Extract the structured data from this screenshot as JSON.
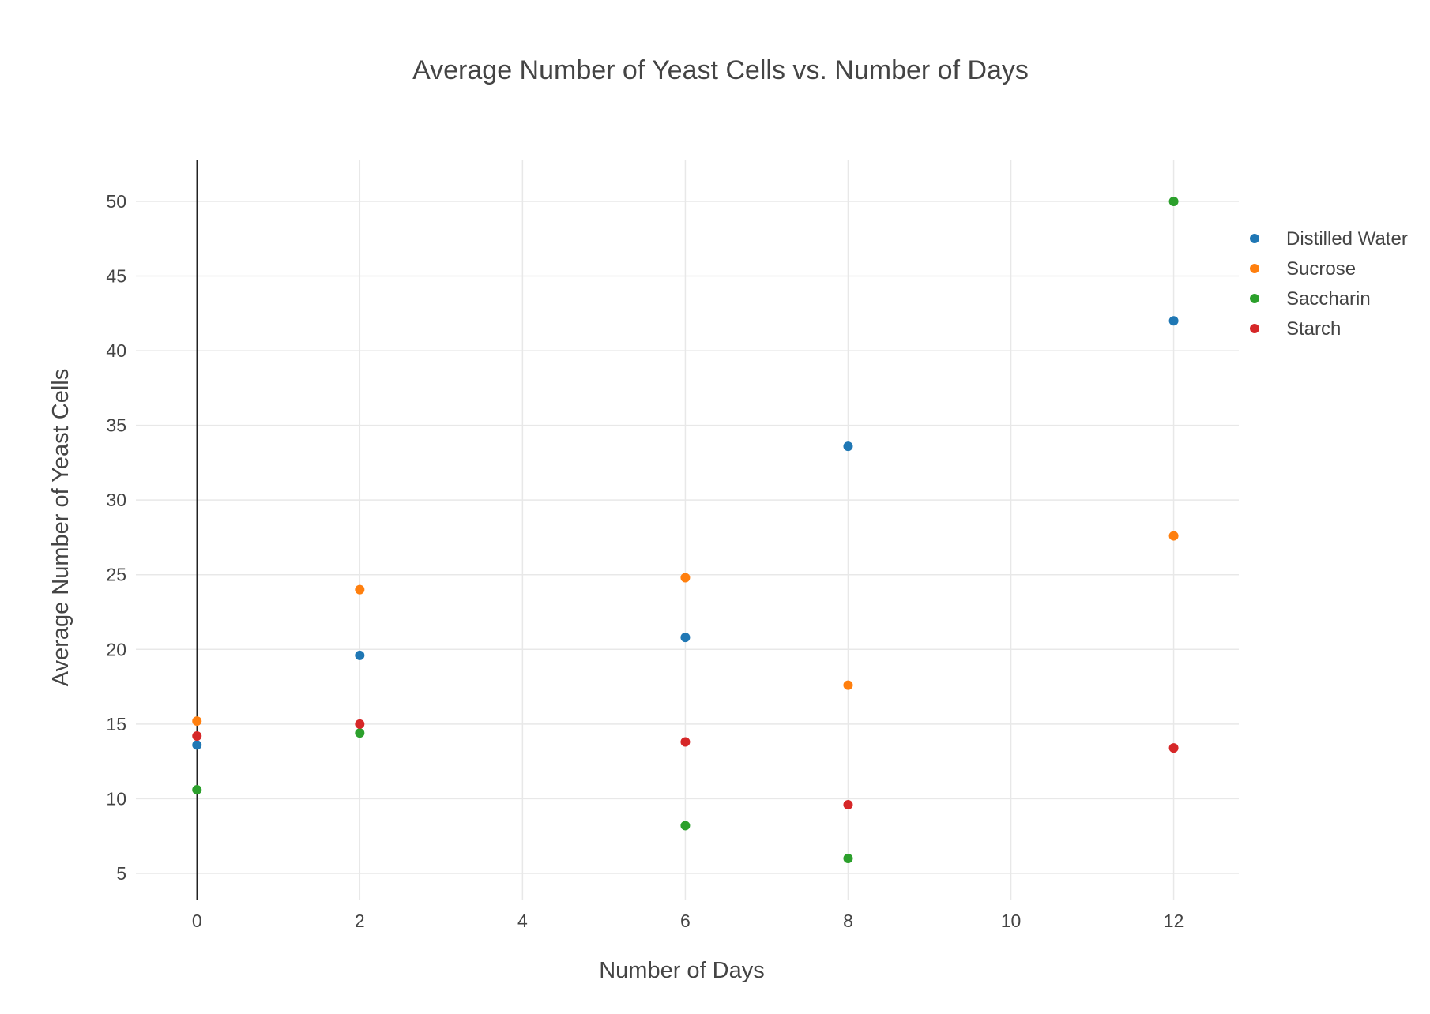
{
  "chart_data": {
    "type": "scatter",
    "title": "Average Number of Yeast Cells vs. Number of Days",
    "xlabel": "Number of Days",
    "ylabel": "Average Number of Yeast Cells",
    "xlim": [
      -0.75,
      12.8
    ],
    "ylim": [
      3.2,
      52.8
    ],
    "xticks": [
      0,
      2,
      4,
      6,
      8,
      10,
      12
    ],
    "yticks": [
      5,
      10,
      15,
      20,
      25,
      30,
      35,
      40,
      45,
      50
    ],
    "x_tick_labels": [
      "0",
      "2",
      "4",
      "6",
      "8",
      "10",
      "12"
    ],
    "y_tick_labels": [
      "5",
      "10",
      "15",
      "20",
      "25",
      "30",
      "35",
      "40",
      "45",
      "50"
    ],
    "grid": true,
    "legend_position": "top-right",
    "series": [
      {
        "name": "Distilled Water",
        "color": "#1f77b4",
        "x": [
          0,
          2,
          6,
          8,
          12
        ],
        "y": [
          13.6,
          19.6,
          20.8,
          33.6,
          42
        ]
      },
      {
        "name": "Sucrose",
        "color": "#ff7f0e",
        "x": [
          0,
          2,
          6,
          8,
          12
        ],
        "y": [
          15.2,
          24,
          24.8,
          17.6,
          27.6
        ]
      },
      {
        "name": "Saccharin",
        "color": "#2ca02c",
        "x": [
          0,
          2,
          6,
          8,
          12
        ],
        "y": [
          10.6,
          14.4,
          8.2,
          6,
          50
        ]
      },
      {
        "name": "Starch",
        "color": "#d62728",
        "x": [
          0,
          2,
          6,
          8,
          12
        ],
        "y": [
          14.2,
          15,
          13.8,
          9.6,
          13.4
        ]
      }
    ]
  }
}
